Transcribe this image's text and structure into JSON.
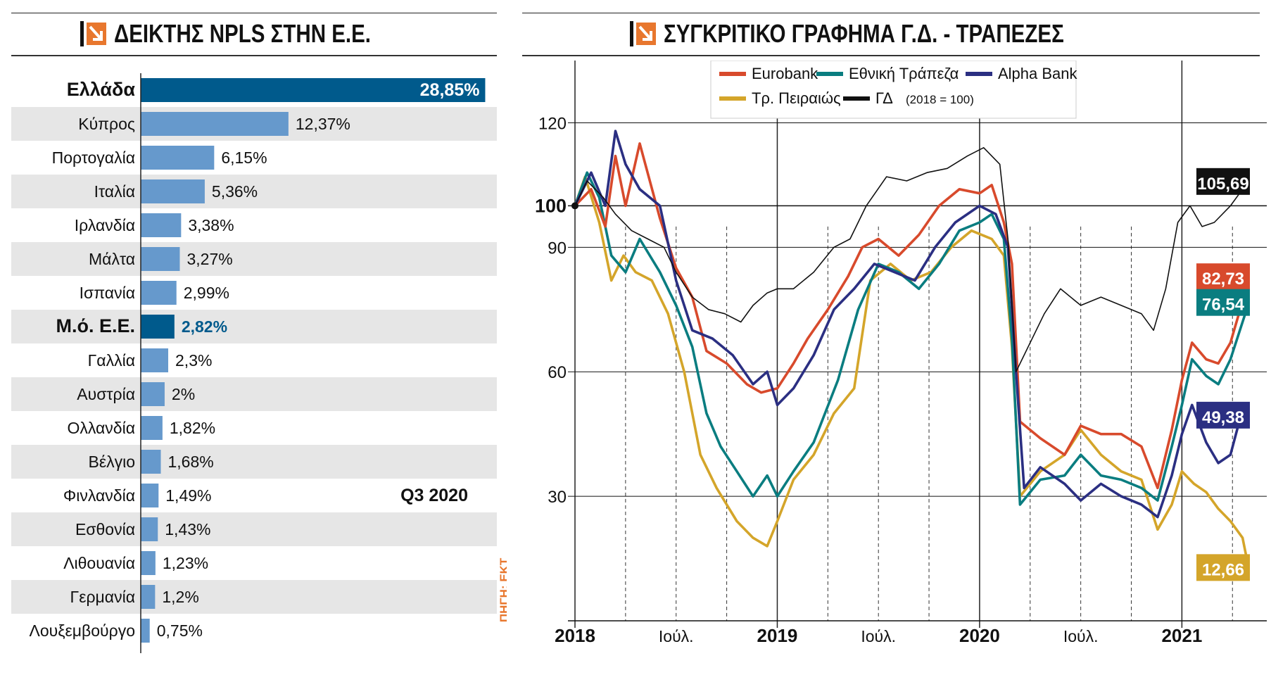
{
  "left_panel": {
    "title": "ΔΕΙΚΤΗΣ NPLS ΣΤΗΝ Ε.Ε.",
    "period_label": "Q3 2020",
    "source_label": "ΠΗΓΗ: ΕΚΤ"
  },
  "right_panel": {
    "title": "ΣΥΓΚΡΙΤΙΚΟ ΓΡΑΦΗΜΑ Γ.Δ. - ΤΡΑΠΕΖΕΣ",
    "base_note": "(2018 = 100)"
  },
  "colors": {
    "accent_orange": "#e8772e",
    "bar_dark": "#005a8c",
    "bar_light": "#6699cc",
    "stripe": "#e6e6e6",
    "eurobank": "#d84a2c",
    "ethniki": "#0a7d80",
    "alpha": "#2b2f82",
    "peiraios": "#d4a52a",
    "gd": "#111111"
  },
  "chart_data": [
    {
      "type": "bar",
      "orientation": "horizontal",
      "title": "ΔΕΙΚΤΗΣ NPLS ΣΤΗΝ Ε.Ε.",
      "categories": [
        "Ελλάδα",
        "Κύπρος",
        "Πορτογαλία",
        "Ιταλία",
        "Ιρλανδία",
        "Μάλτα",
        "Ισπανία",
        "Μ.ό. Ε.Ε.",
        "Γαλλία",
        "Αυστρία",
        "Ολλανδία",
        "Βέλγιο",
        "Φινλανδία",
        "Εσθονία",
        "Λιθουανία",
        "Γερμανία",
        "Λουξεμβούργο"
      ],
      "values": [
        28.85,
        12.37,
        6.15,
        5.36,
        3.38,
        3.27,
        2.99,
        2.82,
        2.3,
        2.0,
        1.82,
        1.68,
        1.49,
        1.43,
        1.23,
        1.2,
        0.75
      ],
      "value_labels": [
        "28,85%",
        "12,37%",
        "6,15%",
        "5,36%",
        "3,38%",
        "3,27%",
        "2,99%",
        "2,82%",
        "2,3%",
        "2%",
        "1,82%",
        "1,68%",
        "1,49%",
        "1,43%",
        "1,23%",
        "1,2%",
        "0,75%"
      ],
      "highlighted": [
        "Ελλάδα",
        "Μ.ό. Ε.Ε."
      ],
      "xlim": [
        0,
        29
      ],
      "annotation": "Q3 2020"
    },
    {
      "type": "line",
      "title": "ΣΥΓΚΡΙΤΙΚΟ ΓΡΑΦΗΜΑ Γ.Δ. - ΤΡΑΠΕΖΕΣ",
      "x_tick_labels": [
        "2018",
        "Ιούλ.",
        "2019",
        "Ιούλ.",
        "2020",
        "Ιούλ.",
        "2021"
      ],
      "x_tick_positions": [
        2018.0,
        2018.5,
        2019.0,
        2019.5,
        2020.0,
        2020.5,
        2021.0
      ],
      "xlim": [
        2018.0,
        2021.35
      ],
      "ylim": [
        0,
        135
      ],
      "y_ticks": [
        30,
        60,
        90,
        100,
        120
      ],
      "y_tick_labels": [
        "30",
        "60",
        "90",
        "100",
        "120"
      ],
      "legend_position": "top-right",
      "series": [
        {
          "name": "Eurobank",
          "color_key": "eurobank",
          "end_label": "82,73",
          "points": [
            [
              2018.0,
              100
            ],
            [
              2018.08,
              104
            ],
            [
              2018.15,
              95
            ],
            [
              2018.2,
              112
            ],
            [
              2018.25,
              100
            ],
            [
              2018.32,
              115
            ],
            [
              2018.42,
              97
            ],
            [
              2018.5,
              85
            ],
            [
              2018.58,
              78
            ],
            [
              2018.65,
              65
            ],
            [
              2018.75,
              62
            ],
            [
              2018.85,
              57
            ],
            [
              2018.92,
              55
            ],
            [
              2019.0,
              56
            ],
            [
              2019.08,
              62
            ],
            [
              2019.15,
              68
            ],
            [
              2019.25,
              75
            ],
            [
              2019.35,
              83
            ],
            [
              2019.42,
              90
            ],
            [
              2019.5,
              92
            ],
            [
              2019.6,
              88
            ],
            [
              2019.7,
              93
            ],
            [
              2019.8,
              100
            ],
            [
              2019.9,
              104
            ],
            [
              2020.0,
              103
            ],
            [
              2020.06,
              105
            ],
            [
              2020.12,
              96
            ],
            [
              2020.16,
              86
            ],
            [
              2020.2,
              48
            ],
            [
              2020.3,
              44
            ],
            [
              2020.42,
              40
            ],
            [
              2020.5,
              47
            ],
            [
              2020.6,
              45
            ],
            [
              2020.7,
              45
            ],
            [
              2020.8,
              42
            ],
            [
              2020.88,
              32
            ],
            [
              2020.95,
              46
            ],
            [
              2021.0,
              58
            ],
            [
              2021.05,
              67
            ],
            [
              2021.12,
              63
            ],
            [
              2021.18,
              62
            ],
            [
              2021.24,
              67
            ],
            [
              2021.3,
              77
            ],
            [
              2021.33,
              82.73
            ]
          ]
        },
        {
          "name": "Εθνική Τράπεζα",
          "color_key": "ethniki",
          "end_label": "76,54",
          "points": [
            [
              2018.0,
              100
            ],
            [
              2018.06,
              108
            ],
            [
              2018.12,
              102
            ],
            [
              2018.18,
              88
            ],
            [
              2018.25,
              84
            ],
            [
              2018.32,
              92
            ],
            [
              2018.42,
              84
            ],
            [
              2018.5,
              76
            ],
            [
              2018.58,
              66
            ],
            [
              2018.65,
              50
            ],
            [
              2018.72,
              42
            ],
            [
              2018.8,
              36
            ],
            [
              2018.88,
              30
            ],
            [
              2018.95,
              35
            ],
            [
              2019.0,
              30
            ],
            [
              2019.08,
              36
            ],
            [
              2019.18,
              43
            ],
            [
              2019.3,
              58
            ],
            [
              2019.4,
              75
            ],
            [
              2019.5,
              86
            ],
            [
              2019.6,
              84
            ],
            [
              2019.7,
              80
            ],
            [
              2019.8,
              86
            ],
            [
              2019.9,
              94
            ],
            [
              2020.0,
              96
            ],
            [
              2020.06,
              98
            ],
            [
              2020.12,
              92
            ],
            [
              2020.16,
              68
            ],
            [
              2020.2,
              28
            ],
            [
              2020.3,
              34
            ],
            [
              2020.42,
              35
            ],
            [
              2020.5,
              40
            ],
            [
              2020.6,
              35
            ],
            [
              2020.7,
              34
            ],
            [
              2020.8,
              32
            ],
            [
              2020.88,
              29
            ],
            [
              2020.95,
              42
            ],
            [
              2021.0,
              52
            ],
            [
              2021.05,
              63
            ],
            [
              2021.12,
              59
            ],
            [
              2021.18,
              57
            ],
            [
              2021.24,
              63
            ],
            [
              2021.3,
              72
            ],
            [
              2021.33,
              76.54
            ]
          ]
        },
        {
          "name": "Alpha Bank",
          "color_key": "alpha",
          "end_label": "49,38",
          "points": [
            [
              2018.0,
              100
            ],
            [
              2018.08,
              108
            ],
            [
              2018.15,
              100
            ],
            [
              2018.2,
              118
            ],
            [
              2018.25,
              110
            ],
            [
              2018.32,
              104
            ],
            [
              2018.42,
              100
            ],
            [
              2018.5,
              82
            ],
            [
              2018.58,
              70
            ],
            [
              2018.68,
              68
            ],
            [
              2018.78,
              64
            ],
            [
              2018.88,
              57
            ],
            [
              2018.95,
              60
            ],
            [
              2019.0,
              52
            ],
            [
              2019.08,
              56
            ],
            [
              2019.18,
              64
            ],
            [
              2019.28,
              75
            ],
            [
              2019.38,
              80
            ],
            [
              2019.48,
              86
            ],
            [
              2019.58,
              84
            ],
            [
              2019.68,
              82
            ],
            [
              2019.78,
              90
            ],
            [
              2019.88,
              96
            ],
            [
              2020.0,
              100
            ],
            [
              2020.08,
              98
            ],
            [
              2020.14,
              90
            ],
            [
              2020.18,
              60
            ],
            [
              2020.22,
              32
            ],
            [
              2020.3,
              37
            ],
            [
              2020.42,
              33
            ],
            [
              2020.5,
              29
            ],
            [
              2020.6,
              33
            ],
            [
              2020.7,
              30
            ],
            [
              2020.8,
              28
            ],
            [
              2020.88,
              25
            ],
            [
              2020.95,
              35
            ],
            [
              2021.0,
              45
            ],
            [
              2021.05,
              52
            ],
            [
              2021.12,
              43
            ],
            [
              2021.18,
              38
            ],
            [
              2021.24,
              40
            ],
            [
              2021.3,
              51
            ],
            [
              2021.33,
              49.38
            ]
          ]
        },
        {
          "name": "Τρ. Πειραιώς",
          "color_key": "peiraios",
          "end_label": "12,66",
          "points": [
            [
              2018.0,
              100
            ],
            [
              2018.05,
              107
            ],
            [
              2018.12,
              96
            ],
            [
              2018.18,
              82
            ],
            [
              2018.24,
              88
            ],
            [
              2018.3,
              84
            ],
            [
              2018.38,
              82
            ],
            [
              2018.46,
              74
            ],
            [
              2018.54,
              60
            ],
            [
              2018.62,
              40
            ],
            [
              2018.7,
              32
            ],
            [
              2018.8,
              24
            ],
            [
              2018.88,
              20
            ],
            [
              2018.95,
              18
            ],
            [
              2019.0,
              24
            ],
            [
              2019.08,
              34
            ],
            [
              2019.18,
              40
            ],
            [
              2019.28,
              50
            ],
            [
              2019.38,
              56
            ],
            [
              2019.46,
              82
            ],
            [
              2019.56,
              86
            ],
            [
              2019.66,
              82
            ],
            [
              2019.76,
              84
            ],
            [
              2019.86,
              90
            ],
            [
              2019.96,
              94
            ],
            [
              2020.06,
              92
            ],
            [
              2020.12,
              88
            ],
            [
              2020.16,
              66
            ],
            [
              2020.2,
              30
            ],
            [
              2020.3,
              36
            ],
            [
              2020.42,
              40
            ],
            [
              2020.5,
              46
            ],
            [
              2020.6,
              40
            ],
            [
              2020.7,
              36
            ],
            [
              2020.8,
              34
            ],
            [
              2020.88,
              22
            ],
            [
              2020.95,
              28
            ],
            [
              2021.0,
              36
            ],
            [
              2021.06,
              33
            ],
            [
              2021.12,
              31
            ],
            [
              2021.18,
              27
            ],
            [
              2021.24,
              24
            ],
            [
              2021.3,
              20
            ],
            [
              2021.33,
              12.66
            ]
          ]
        },
        {
          "name": "ΓΔ",
          "color_key": "gd",
          "end_label": "105,69",
          "points": [
            [
              2018.0,
              100
            ],
            [
              2018.06,
              106
            ],
            [
              2018.14,
              102
            ],
            [
              2018.2,
              98
            ],
            [
              2018.28,
              94
            ],
            [
              2018.36,
              92
            ],
            [
              2018.44,
              90
            ],
            [
              2018.5,
              84
            ],
            [
              2018.58,
              78
            ],
            [
              2018.66,
              75
            ],
            [
              2018.74,
              74
            ],
            [
              2018.82,
              72
            ],
            [
              2018.88,
              76
            ],
            [
              2018.95,
              79
            ],
            [
              2019.0,
              80
            ],
            [
              2019.08,
              80
            ],
            [
              2019.18,
              84
            ],
            [
              2019.28,
              90
            ],
            [
              2019.36,
              92
            ],
            [
              2019.44,
              100
            ],
            [
              2019.54,
              107
            ],
            [
              2019.64,
              106
            ],
            [
              2019.74,
              108
            ],
            [
              2019.84,
              109
            ],
            [
              2019.94,
              112
            ],
            [
              2020.02,
              114
            ],
            [
              2020.1,
              110
            ],
            [
              2020.14,
              92
            ],
            [
              2020.18,
              60
            ],
            [
              2020.24,
              66
            ],
            [
              2020.32,
              74
            ],
            [
              2020.4,
              80
            ],
            [
              2020.5,
              76
            ],
            [
              2020.6,
              78
            ],
            [
              2020.7,
              76
            ],
            [
              2020.8,
              74
            ],
            [
              2020.86,
              70
            ],
            [
              2020.92,
              80
            ],
            [
              2020.98,
              96
            ],
            [
              2021.04,
              100
            ],
            [
              2021.1,
              95
            ],
            [
              2021.16,
              96
            ],
            [
              2021.24,
              100
            ],
            [
              2021.3,
              104
            ],
            [
              2021.33,
              105.69
            ]
          ]
        }
      ]
    }
  ]
}
